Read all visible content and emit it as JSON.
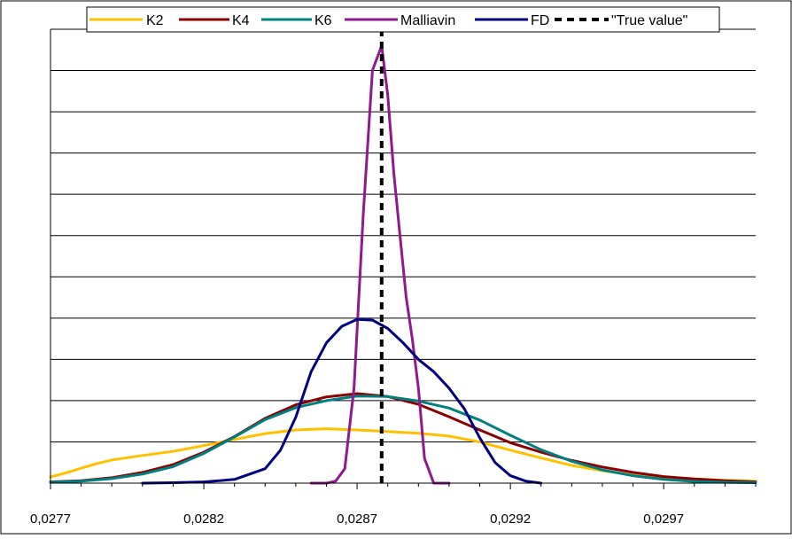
{
  "chart_data": {
    "type": "line",
    "title": "",
    "xlabel": "",
    "ylabel": "",
    "xlim": [
      0.0277,
      0.03
    ],
    "ylim": [
      0,
      11
    ],
    "grid": "horizontal",
    "legend_position": "top",
    "x_tick_values": [
      0.0277,
      0.0282,
      0.0287,
      0.0292,
      0.0297
    ],
    "x_tick_labels": [
      "0,0277",
      "0,0282",
      "0,0287",
      "0,0292",
      "0,0297"
    ],
    "series": [
      {
        "name": "K2",
        "color": "#FFC000",
        "style": "solid",
        "x": [
          0.0277,
          0.02775,
          0.0278,
          0.02785,
          0.0279,
          0.028,
          0.0281,
          0.0282,
          0.0283,
          0.0284,
          0.0285,
          0.0286,
          0.0287,
          0.0288,
          0.0289,
          0.029,
          0.0291,
          0.0292,
          0.0293,
          0.0294,
          0.0295,
          0.0296,
          0.0297,
          0.0298,
          0.0299,
          0.03
        ],
        "y": [
          0.15,
          0.25,
          0.36,
          0.47,
          0.56,
          0.67,
          0.77,
          0.91,
          1.06,
          1.2,
          1.29,
          1.32,
          1.29,
          1.25,
          1.21,
          1.14,
          1.0,
          0.8,
          0.61,
          0.43,
          0.3,
          0.2,
          0.14,
          0.1,
          0.07,
          0.05
        ]
      },
      {
        "name": "K4",
        "color": "#8B0000",
        "style": "solid",
        "x": [
          0.0277,
          0.0278,
          0.0279,
          0.028,
          0.0281,
          0.0282,
          0.0283,
          0.0284,
          0.0285,
          0.0286,
          0.0287,
          0.0288,
          0.0289,
          0.029,
          0.0291,
          0.0292,
          0.0293,
          0.0294,
          0.0295,
          0.0296,
          0.0297,
          0.0298,
          0.0299,
          0.03
        ],
        "y": [
          0.03,
          0.06,
          0.13,
          0.26,
          0.45,
          0.75,
          1.13,
          1.57,
          1.9,
          2.09,
          2.17,
          2.1,
          1.91,
          1.61,
          1.29,
          0.98,
          0.75,
          0.55,
          0.39,
          0.26,
          0.16,
          0.1,
          0.06,
          0.03
        ]
      },
      {
        "name": "K6",
        "color": "#008080",
        "style": "solid",
        "x": [
          0.0277,
          0.0278,
          0.0279,
          0.028,
          0.0281,
          0.0282,
          0.0283,
          0.0284,
          0.0285,
          0.0286,
          0.0287,
          0.0288,
          0.0289,
          0.029,
          0.0291,
          0.0292,
          0.0293,
          0.0294,
          0.0295,
          0.0296,
          0.0297,
          0.0298,
          0.0299,
          0.03
        ],
        "y": [
          0.02,
          0.05,
          0.11,
          0.22,
          0.4,
          0.72,
          1.12,
          1.54,
          1.83,
          2.0,
          2.11,
          2.1,
          1.99,
          1.82,
          1.53,
          1.16,
          0.81,
          0.53,
          0.32,
          0.18,
          0.09,
          0.04,
          0.02,
          0.01
        ]
      },
      {
        "name": "Malliavin",
        "color": "#8E1A8E",
        "style": "solid",
        "x": [
          0.02855,
          0.0286,
          0.02863,
          0.02866,
          0.02869,
          0.02872,
          0.02875,
          0.02878,
          0.0288,
          0.02882,
          0.02884,
          0.02886,
          0.02888,
          0.0289,
          0.02892,
          0.02895,
          0.029
        ],
        "y": [
          0.0,
          0.0,
          0.05,
          0.35,
          2.3,
          6.5,
          10.0,
          10.6,
          9.4,
          7.5,
          6.0,
          4.5,
          3.5,
          2.3,
          0.6,
          0.0,
          0.0
        ]
      },
      {
        "name": "FD",
        "color": "#000080",
        "style": "solid",
        "x": [
          0.028,
          0.0281,
          0.0282,
          0.0283,
          0.0284,
          0.02845,
          0.0285,
          0.02855,
          0.0286,
          0.02865,
          0.0287,
          0.02875,
          0.0288,
          0.02885,
          0.0289,
          0.02895,
          0.029,
          0.02905,
          0.0291,
          0.02915,
          0.0292,
          0.02925,
          0.0293
        ],
        "y": [
          0.0,
          0.01,
          0.03,
          0.09,
          0.35,
          0.8,
          1.6,
          2.7,
          3.4,
          3.8,
          3.97,
          3.95,
          3.75,
          3.4,
          3.0,
          2.7,
          2.3,
          1.8,
          1.1,
          0.5,
          0.18,
          0.05,
          0.0
        ]
      },
      {
        "name": "\"True value\"",
        "color": "#000000",
        "style": "dashed",
        "x": [
          0.02878,
          0.02878
        ],
        "y": [
          0,
          11
        ]
      }
    ]
  }
}
